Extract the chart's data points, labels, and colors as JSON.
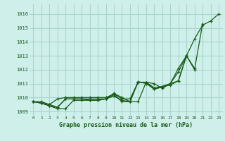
{
  "title": "Graphe pression niveau de la mer (hPa)",
  "bg_color": "#cff0ea",
  "grid_color": "#aad4ce",
  "line_color": "#1a5c1a",
  "xlim": [
    -0.5,
    23.5
  ],
  "ylim": [
    1008.7,
    1016.7
  ],
  "yticks": [
    1009,
    1010,
    1011,
    1012,
    1013,
    1014,
    1015,
    1016
  ],
  "xticks": [
    0,
    1,
    2,
    3,
    4,
    5,
    6,
    7,
    8,
    9,
    10,
    11,
    12,
    13,
    14,
    15,
    16,
    17,
    18,
    19,
    20,
    21,
    22,
    23
  ],
  "series": [
    [
      1009.7,
      1009.6,
      1009.5,
      1009.3,
      1009.9,
      1009.9,
      1009.9,
      1009.8,
      1009.8,
      1009.9,
      1010.3,
      1010.0,
      1009.7,
      1011.1,
      1011.1,
      1010.6,
      1010.8,
      1010.9,
      1011.2,
      1013.0,
      1014.2,
      1015.2,
      1015.5,
      1016.0
    ],
    [
      1009.7,
      1009.6,
      1009.4,
      1009.2,
      1009.2,
      1009.8,
      1009.8,
      1009.8,
      1009.8,
      1009.9,
      1010.1,
      1009.8,
      1009.7,
      1009.7,
      1011.1,
      1011.0,
      1010.65,
      1011.0,
      1011.85,
      1013.0,
      1012.0,
      1015.3,
      null,
      null
    ],
    [
      1009.7,
      1009.6,
      1009.4,
      1009.3,
      1009.9,
      1009.9,
      1009.9,
      1009.9,
      1009.9,
      1009.9,
      1010.2,
      1009.7,
      1009.7,
      1011.15,
      1011.0,
      1010.6,
      1010.75,
      1011.0,
      1011.2,
      1013.0,
      1012.1,
      null,
      null,
      null
    ],
    [
      1009.7,
      1009.7,
      1009.5,
      1009.9,
      1010.0,
      1010.0,
      1010.0,
      1010.0,
      1010.0,
      1010.0,
      1010.25,
      1009.9,
      1009.9,
      1011.1,
      1011.1,
      1010.7,
      1010.8,
      1011.0,
      1012.1,
      1013.0,
      null,
      null,
      null,
      null
    ]
  ]
}
